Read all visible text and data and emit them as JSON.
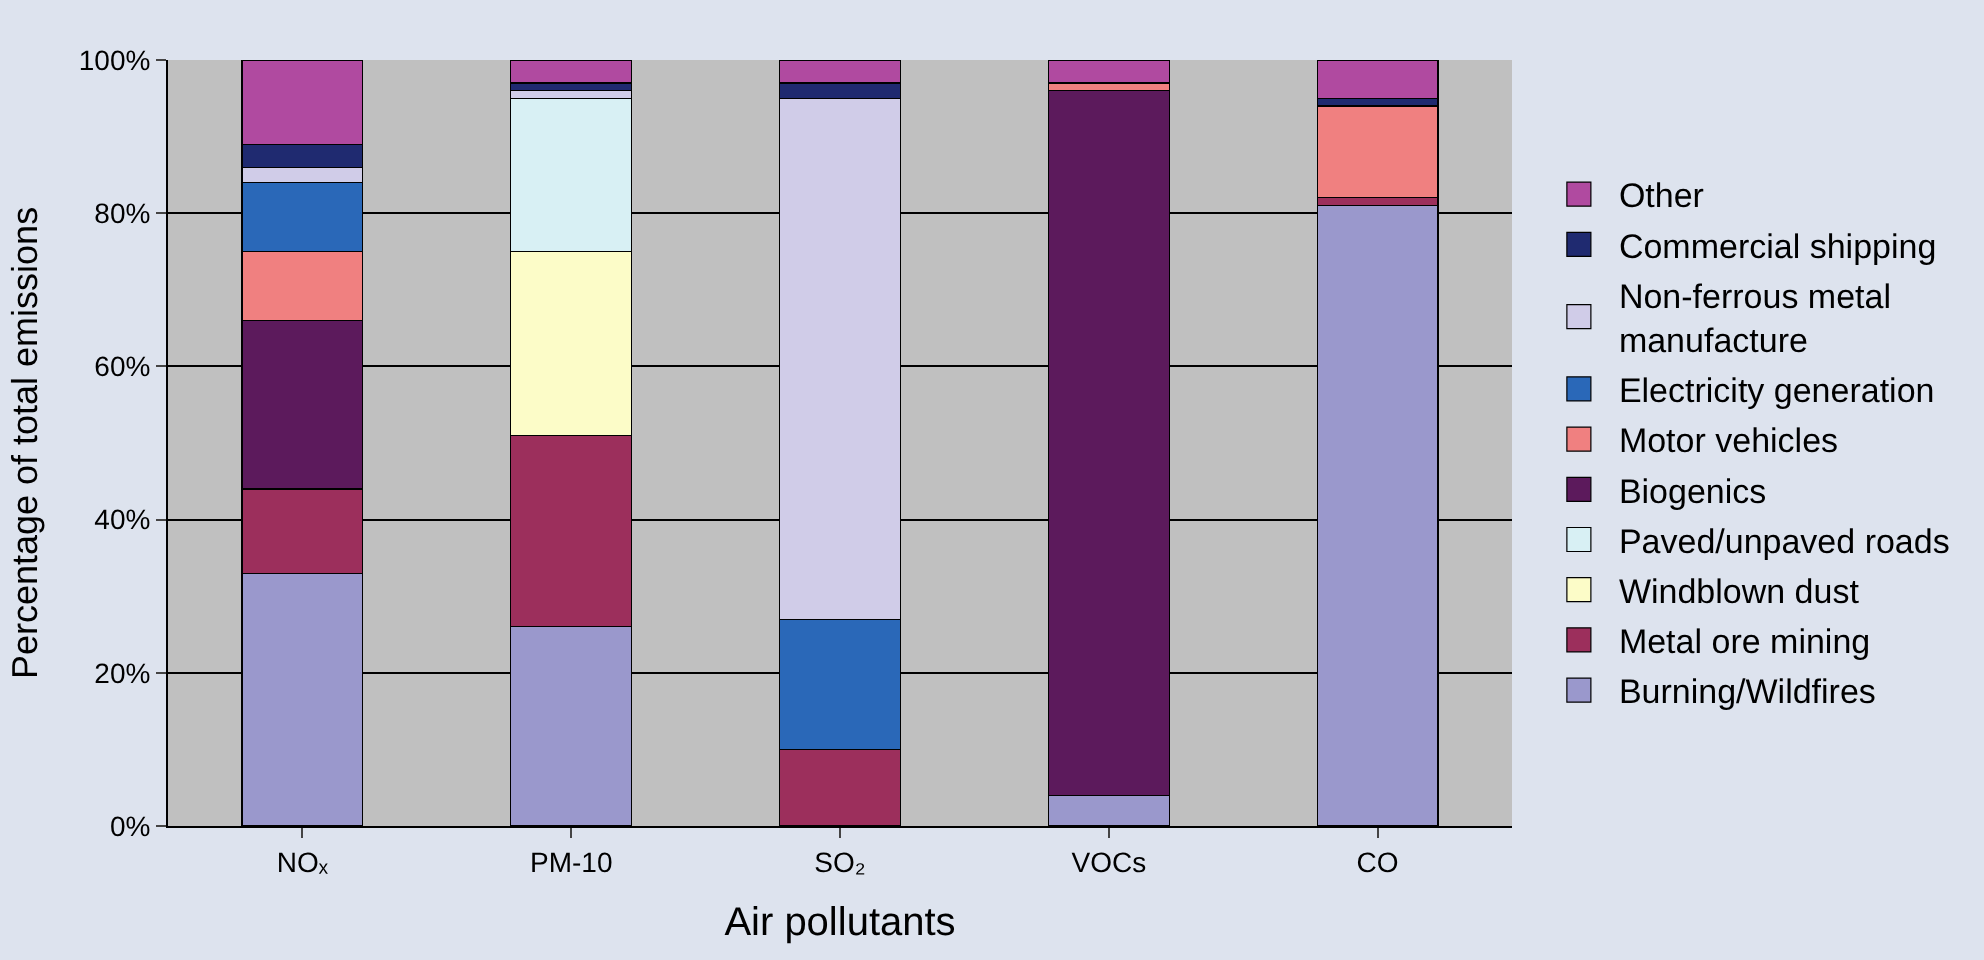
{
  "chart_data": {
    "type": "bar",
    "stacked": true,
    "xlabel": "Air pollutants",
    "ylabel": "Percentage of total emissions",
    "categories": [
      "NOₓ",
      "PM-10",
      "SO₂",
      "VOCs",
      "CO"
    ],
    "series": [
      {
        "name": "Burning/Wildfires",
        "color": "#9a98cc",
        "values": [
          33,
          26,
          0,
          4,
          81
        ]
      },
      {
        "name": "Metal ore mining",
        "color": "#9c2f5c",
        "values": [
          11,
          25,
          10,
          0,
          1
        ]
      },
      {
        "name": "Windblown dust",
        "color": "#fcfcc8",
        "values": [
          0,
          24,
          0,
          0,
          0
        ]
      },
      {
        "name": "Paved/unpaved roads",
        "color": "#d8f0f4",
        "values": [
          0,
          20,
          0,
          0,
          0
        ]
      },
      {
        "name": "Biogenics",
        "color": "#5c1a5c",
        "values": [
          22,
          0,
          0,
          92,
          0
        ]
      },
      {
        "name": "Motor vehicles",
        "color": "#f08080",
        "values": [
          9,
          0,
          0,
          1,
          12
        ]
      },
      {
        "name": "Electricity generation",
        "color": "#2a68b8",
        "values": [
          9,
          0,
          17,
          0,
          0
        ]
      },
      {
        "name": "Non-ferrous metal manufacture",
        "color": "#d0cce8",
        "values": [
          2,
          1,
          68,
          0,
          0
        ]
      },
      {
        "name": "Commercial shipping",
        "color": "#1f2a70",
        "values": [
          3,
          1,
          2,
          0,
          1
        ]
      },
      {
        "name": "Other",
        "color": "#b04aa0",
        "values": [
          11,
          3,
          3,
          3,
          5
        ]
      }
    ],
    "ylim": [
      0,
      100
    ],
    "yticks": [
      {
        "value": 0,
        "label": "0%"
      },
      {
        "value": 20,
        "label": "20%"
      },
      {
        "value": 40,
        "label": "40%"
      },
      {
        "value": 60,
        "label": "60%"
      },
      {
        "value": 80,
        "label": "80%"
      },
      {
        "value": 100,
        "label": "100%"
      }
    ],
    "grid": "y",
    "legend": "right"
  }
}
